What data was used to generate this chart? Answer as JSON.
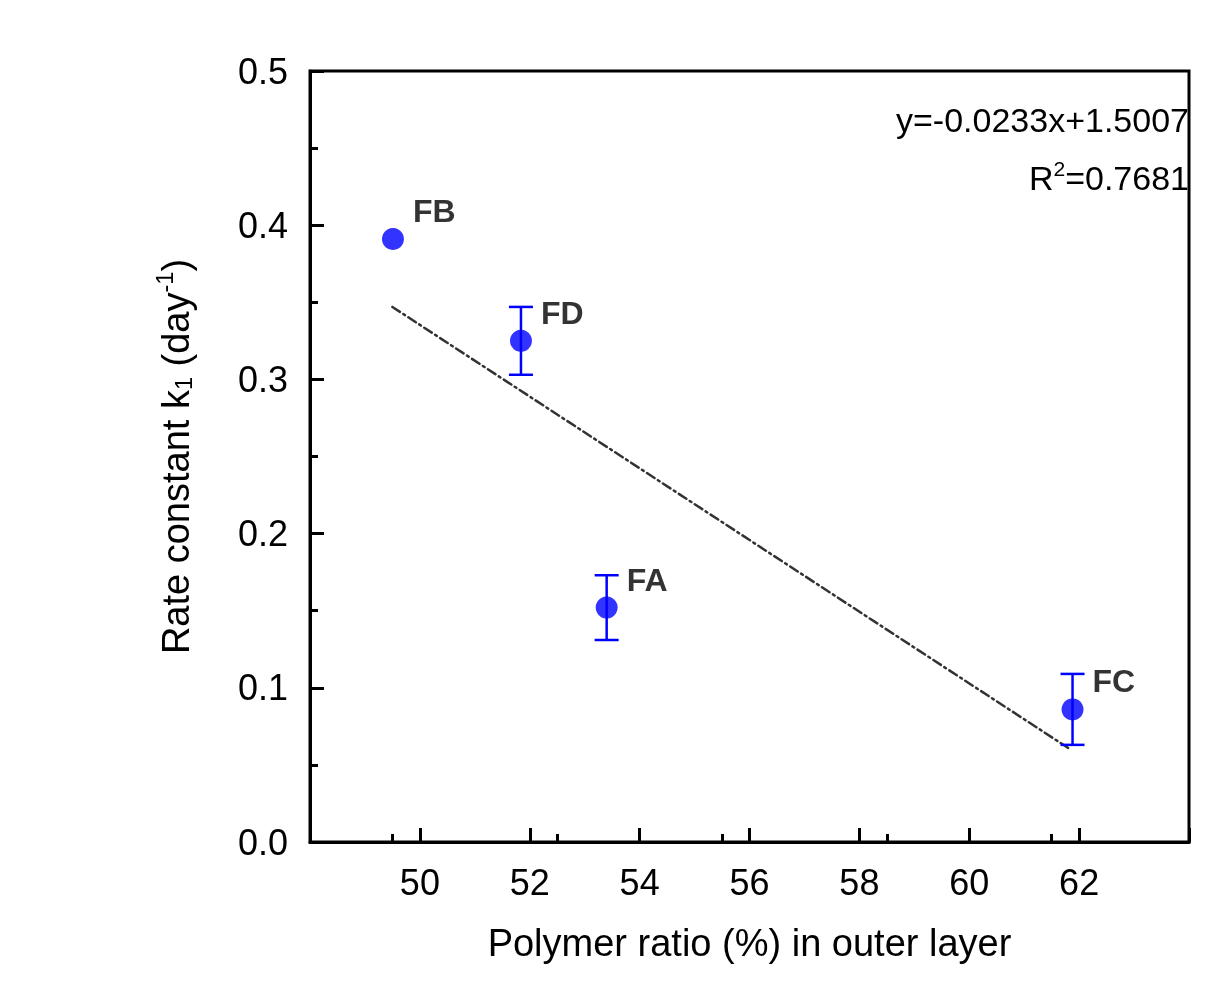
{
  "chart_data": {
    "type": "scatter",
    "xlabel": "Polymer ratio (%) in outer layer",
    "ylabel": "Rate constant k$_{1}$ (day$^{-1}$)",
    "series": [
      {
        "color": "#0000ff",
        "x": [
          49.51,
          51.84,
          53.4,
          61.88
        ],
        "values": [
          0.391,
          0.325,
          0.152,
          0.086
        ],
        "errors": [
          null,
          0.022,
          0.021,
          0.023
        ],
        "marker": "circle"
      },
      {
        "type": "line",
        "color": "#333333",
        "x": [
          49.5,
          61.8
        ],
        "values": [
          0.347,
          0.061
        ],
        "line_style": "dashed",
        "marker": "none"
      }
    ],
    "annotations": [
      {
        "text": "FB",
        "x": 49.51,
        "y": 0.391
      },
      {
        "text": "FD",
        "x": 51.84,
        "y": 0.325
      },
      {
        "text": "FA",
        "x": 53.4,
        "y": 0.152
      },
      {
        "text": "FC",
        "x": 61.88,
        "y": 0.086
      },
      "y=-0.0233x+1.5007",
      "R$^{2}$=0.7681"
    ],
    "xlim": [
      48,
      64
    ],
    "xticks": [
      {
        "value": 48,
        "label": null
      },
      50,
      52,
      54,
      56,
      58,
      60,
      62,
      {
        "value": 64,
        "label": null
      }
    ],
    "ylim": [
      0,
      0.5
    ],
    "yticks": [
      {
        "value": 0,
        "label": "0.0"
      },
      0.1,
      0.2,
      0.3,
      0.4,
      0.5
    ],
    "grid": false
  }
}
